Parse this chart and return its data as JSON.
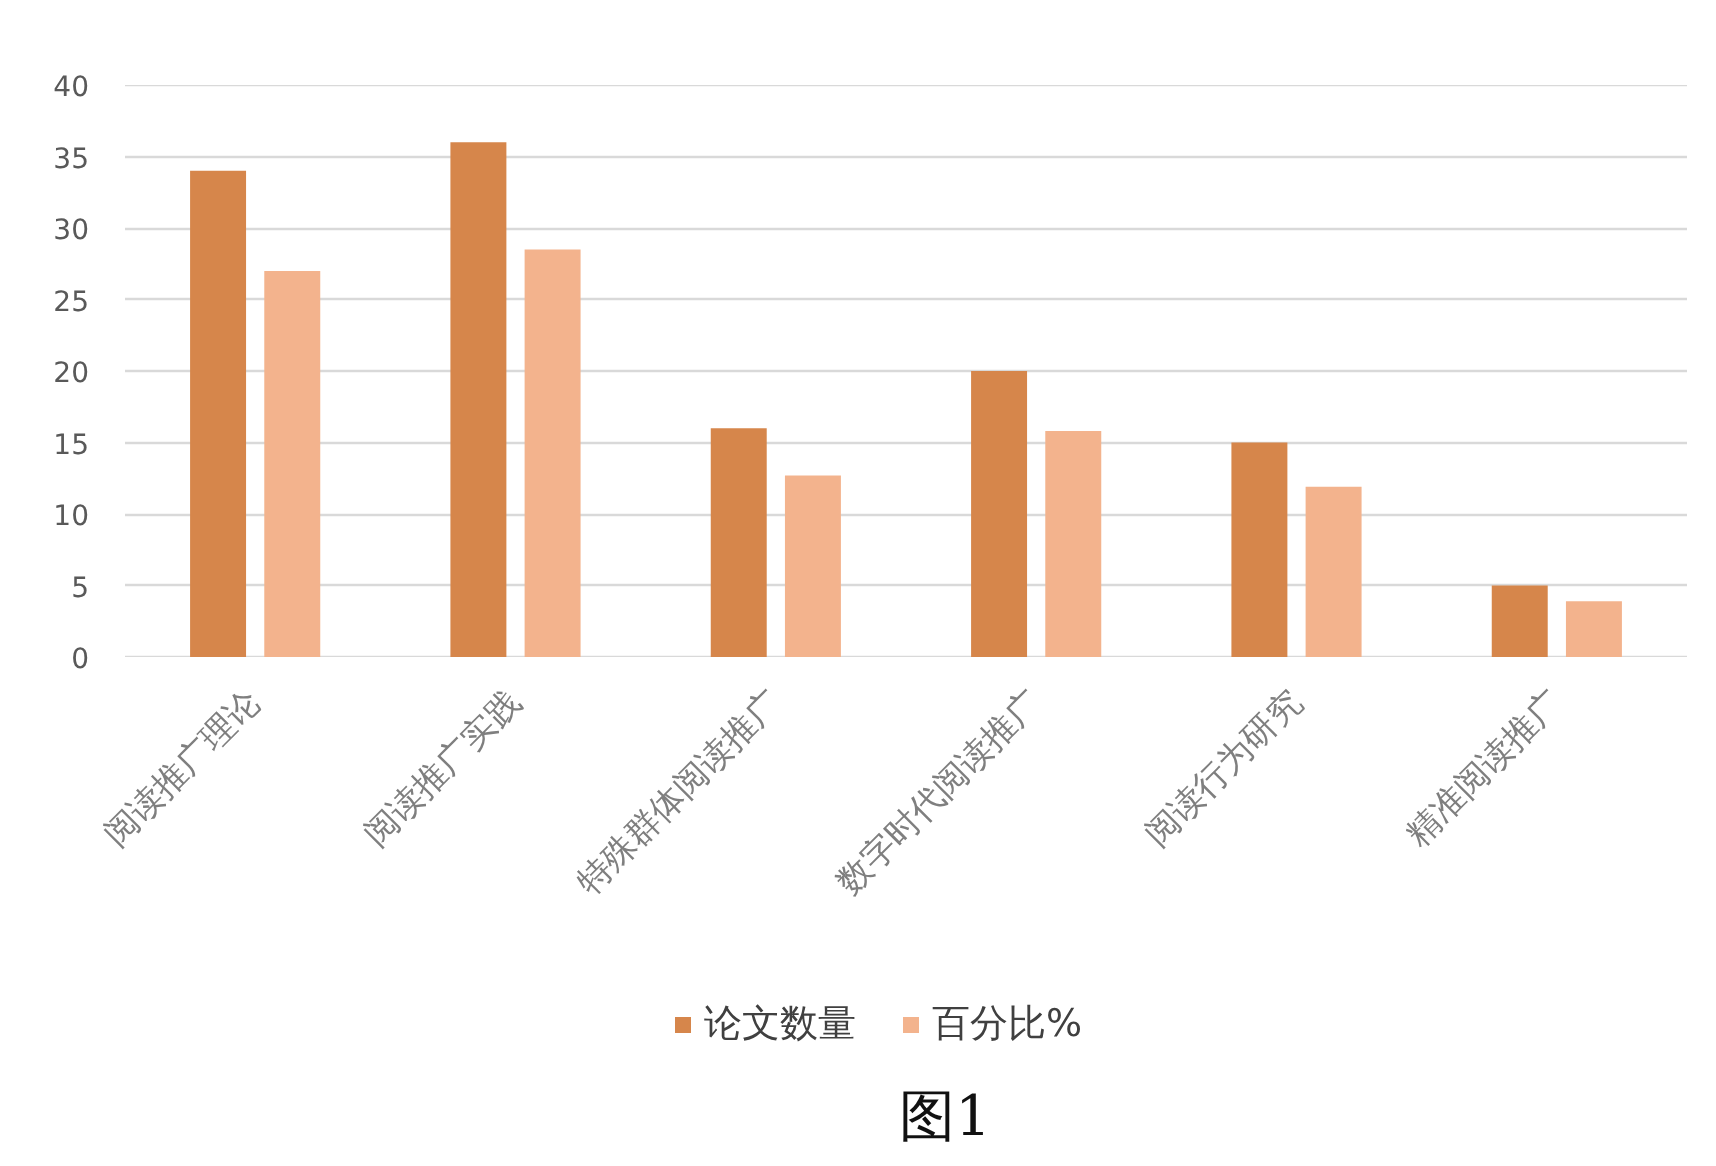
{
  "chart_data": {
    "type": "bar",
    "categories": [
      "阅读推广理论",
      "阅读推广实践",
      "特殊群体阅读推广",
      "数字时代阅读推广",
      "阅读行为研究",
      "精准阅读推广"
    ],
    "series": [
      {
        "name": "论文数量",
        "color": "#d6864b",
        "values": [
          34,
          36,
          16,
          20,
          15,
          5
        ]
      },
      {
        "name": "百分比%",
        "color": "#f3b38d",
        "values": [
          27,
          28.5,
          12.7,
          15.8,
          11.9,
          3.9
        ]
      }
    ],
    "ylim": [
      0,
      40
    ],
    "yticks": [
      0,
      5,
      10,
      15,
      20,
      25,
      30,
      35,
      40
    ],
    "grid": "y",
    "legend": "bottom",
    "annotations": [
      "图1"
    ]
  }
}
